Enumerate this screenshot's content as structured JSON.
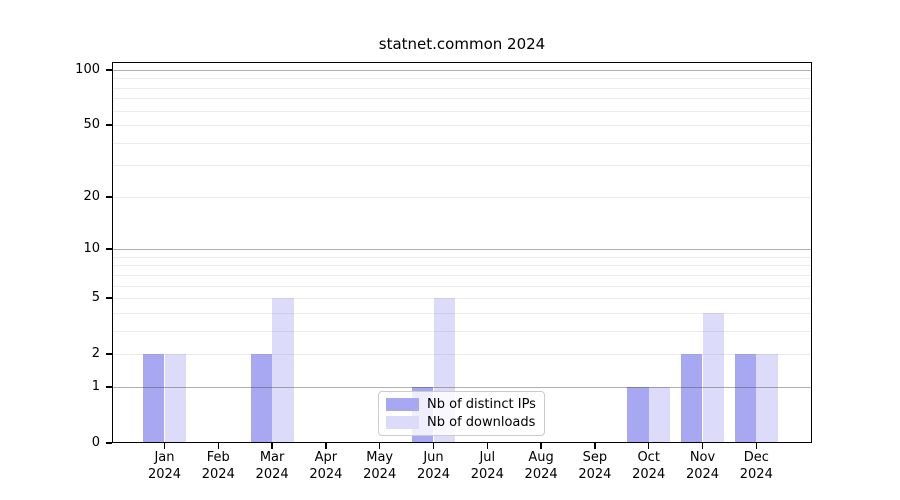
{
  "chart_data": {
    "type": "bar",
    "title": "statnet.common 2024",
    "year_label": "2024",
    "categories": [
      "Jan",
      "Feb",
      "Mar",
      "Apr",
      "May",
      "Jun",
      "Jul",
      "Aug",
      "Sep",
      "Oct",
      "Nov",
      "Dec"
    ],
    "series": [
      {
        "name": "Nb of distinct IPs",
        "color": "#a8a8f2",
        "values": [
          2,
          0,
          2,
          0,
          0,
          1,
          0,
          0,
          0,
          1,
          2,
          2
        ]
      },
      {
        "name": "Nb of downloads",
        "color": "#dcdcfa",
        "values": [
          2,
          0,
          5,
          0,
          0,
          5,
          0,
          0,
          0,
          1,
          4,
          2
        ]
      }
    ],
    "xlabel": "",
    "ylabel": "",
    "y_axis": {
      "scale": "log1p",
      "ylim": [
        0,
        100
      ],
      "tick_values": [
        0,
        1,
        2,
        5,
        10,
        20,
        50,
        100
      ],
      "tick_labels": [
        "0",
        "1",
        "2",
        "5",
        "10",
        "20",
        "50",
        "100"
      ],
      "major_gridlines": [
        1,
        10,
        100
      ],
      "minor_gridlines": [
        2,
        3,
        4,
        5,
        6,
        7,
        8,
        9,
        20,
        30,
        40,
        50,
        60,
        70,
        80,
        90
      ]
    },
    "grid": true,
    "legend_position": "lower center",
    "frame_color": "#000000",
    "background_color": "#ffffff"
  }
}
